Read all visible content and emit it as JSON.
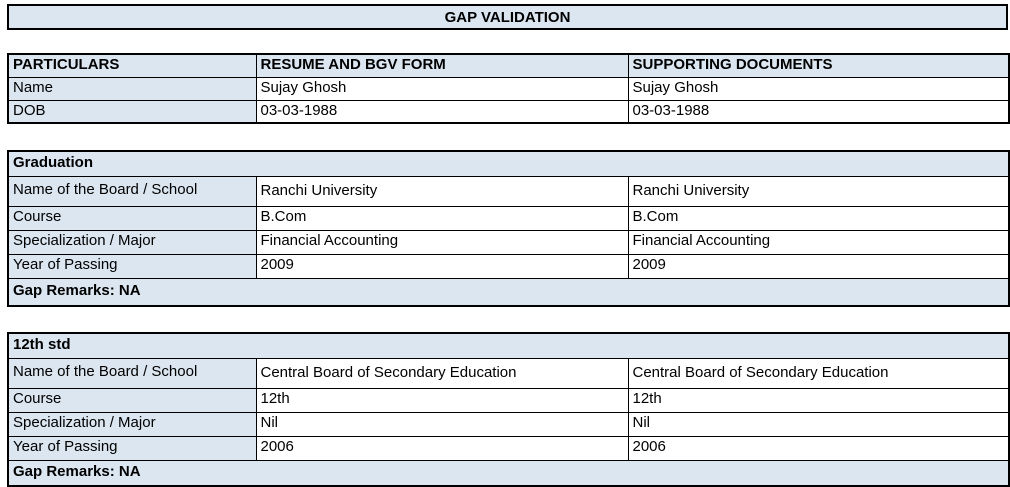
{
  "title": "GAP VALIDATION",
  "colors": {
    "header_fill": "#dce6f1",
    "border": "#000000",
    "text": "#000000",
    "background": "#ffffff"
  },
  "particulars_table": {
    "headers": [
      "PARTICULARS",
      "RESUME AND BGV FORM",
      "SUPPORTING DOCUMENTS"
    ],
    "rows": [
      {
        "label": "Name",
        "resume": "Sujay Ghosh",
        "supporting": "Sujay Ghosh"
      },
      {
        "label": "DOB",
        "resume": "03-03-1988",
        "supporting": "03-03-1988"
      }
    ]
  },
  "sections": [
    {
      "heading": "Graduation",
      "rows": [
        {
          "label": "Name of the Board / School",
          "resume": "Ranchi University",
          "supporting": "Ranchi University"
        },
        {
          "label": "Course",
          "resume": "B.Com",
          "supporting": "B.Com"
        },
        {
          "label": "Specialization / Major",
          "resume": "Financial Accounting",
          "supporting": "Financial Accounting"
        },
        {
          "label": "Year of Passing",
          "resume": "2009",
          "supporting": "2009"
        }
      ],
      "gap_remarks": "Gap Remarks: NA"
    },
    {
      "heading": "12th std",
      "rows": [
        {
          "label": "Name of the Board / School",
          "resume": "Central Board of Secondary Education",
          "supporting": "Central Board of Secondary Education"
        },
        {
          "label": "Course",
          "resume": "12th",
          "supporting": "12th"
        },
        {
          "label": "Specialization / Major",
          "resume": "Nil",
          "supporting": "Nil"
        },
        {
          "label": "Year of Passing",
          "resume": "2006",
          "supporting": "2006"
        }
      ],
      "gap_remarks": "Gap Remarks: NA"
    }
  ]
}
